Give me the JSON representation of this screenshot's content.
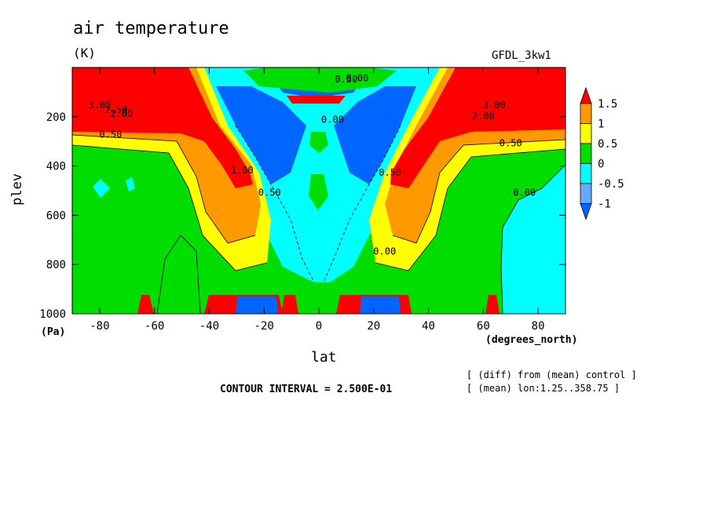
{
  "header": {
    "title": "air temperature",
    "units": "(K)",
    "model": "GFDL_3kw1"
  },
  "axes": {
    "ylabel": "plev",
    "yunits": "(Pa)",
    "xlabel": "lat",
    "xunits": "(degrees_north)"
  },
  "footer": {
    "contour_interval": "CONTOUR INTERVAL = 2.500E-01",
    "note1": "[ (diff) from (mean) control ]",
    "note2": "[ (mean) lon:1.25..358.75 ]"
  },
  "colors": {
    "red": "#ff0000",
    "orange": "#ff9900",
    "yellow": "#ffff00",
    "green": "#00dd00",
    "cyan": "#00ffff",
    "blue": "#0066ff"
  },
  "chart_data": {
    "type": "heatmap",
    "subtype": "filled contour",
    "x": {
      "name": "lat",
      "range": [
        -90,
        90
      ],
      "ticks": [
        -80,
        -60,
        -40,
        -20,
        0,
        20,
        40,
        60,
        80
      ]
    },
    "y": {
      "name": "plev",
      "range": [
        0,
        1000
      ],
      "ticks": [
        200,
        400,
        600,
        800,
        1000
      ],
      "inverted": true
    },
    "colorbar": {
      "levels": [
        "-1",
        "-0.5",
        "0",
        "0.5",
        "1",
        "1.5"
      ],
      "bands": [
        {
          "range": [
            1.5,
            null
          ],
          "color": "#ff0000"
        },
        {
          "range": [
            1,
            1.5
          ],
          "color": "#ff9900"
        },
        {
          "range": [
            0.5,
            1
          ],
          "color": "#ffff00"
        },
        {
          "range": [
            0,
            0.5
          ],
          "color": "#00dd00"
        },
        {
          "range": [
            -0.5,
            0
          ],
          "color": "#00ffff"
        },
        {
          "range": [
            -1,
            -0.5
          ],
          "color": "#66aaff"
        },
        {
          "range": [
            null,
            -1
          ],
          "color": "#0066ff"
        }
      ]
    },
    "contour_labels": [
      {
        "text": "3.00",
        "lat": -80,
        "plev": 165
      },
      {
        "text": "2.50",
        "lat": -74,
        "plev": 185
      },
      {
        "text": "2.00",
        "lat": -72,
        "plev": 200
      },
      {
        "text": "0.50",
        "lat": -76,
        "plev": 285
      },
      {
        "text": "1.00",
        "lat": -28,
        "plev": 430
      },
      {
        "text": "0.50",
        "lat": -18,
        "plev": 520
      },
      {
        "text": "0.50",
        "lat": 10,
        "plev": 60
      },
      {
        "text": "0.00",
        "lat": 14,
        "plev": 55
      },
      {
        "text": "0.00",
        "lat": 5,
        "plev": 225
      },
      {
        "text": "0.50",
        "lat": 26,
        "plev": 440
      },
      {
        "text": "0.00",
        "lat": 24,
        "plev": 760
      },
      {
        "text": "3.00",
        "lat": 64,
        "plev": 165
      },
      {
        "text": "2.00",
        "lat": 60,
        "plev": 210
      },
      {
        "text": "0.50",
        "lat": 70,
        "plev": 320
      },
      {
        "text": "0.00",
        "lat": 75,
        "plev": 520
      }
    ]
  }
}
